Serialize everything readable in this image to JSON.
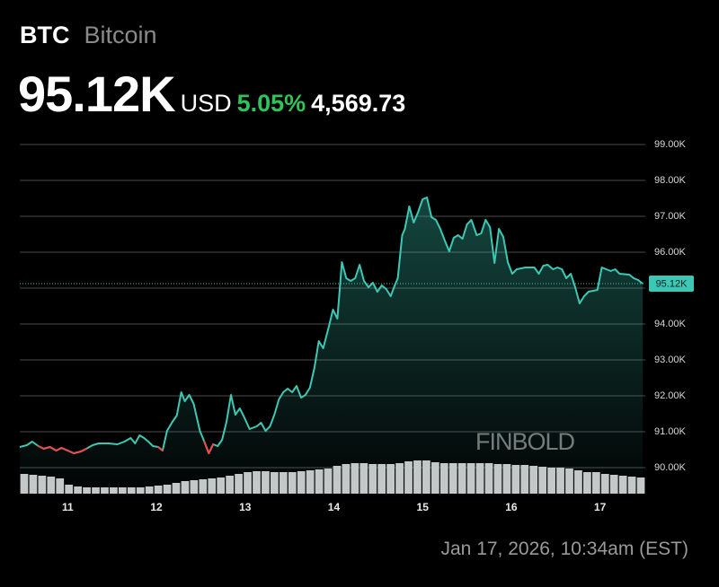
{
  "header": {
    "symbol": "BTC",
    "name": "Bitcoin",
    "price": "95.12K",
    "currency": "USD",
    "change_pct": "5.05%",
    "change_abs": "4,569.73"
  },
  "footer": {
    "timestamp": "Jan 17, 2026, 10:34am (EST)"
  },
  "chart_data": {
    "type": "line",
    "xlim": [
      10.46,
      17.51
    ],
    "xticks": [
      11,
      12,
      13,
      14,
      15,
      16,
      17
    ],
    "ylim": [
      89275,
      99525
    ],
    "yticks": [
      {
        "value": 90000,
        "label": "90.00K"
      },
      {
        "value": 91000,
        "label": "91.00K"
      },
      {
        "value": 92000,
        "label": "92.00K"
      },
      {
        "value": 93000,
        "label": "93.00K"
      },
      {
        "value": 94000,
        "label": "94.00K"
      },
      {
        "value": 95000,
        "label": "95.00K"
      },
      {
        "value": 96000,
        "label": "96.00K"
      },
      {
        "value": 97000,
        "label": "97.00K"
      },
      {
        "value": 98000,
        "label": "98.00K"
      },
      {
        "value": 99000,
        "label": "99.00K"
      }
    ],
    "grid": true,
    "last_label": "95.12K",
    "watermark": "FINBOLD",
    "series": [
      {
        "name": "BTC",
        "color": "#3cc8b4",
        "down_color": "#f04a4a",
        "x": [
          10.46,
          10.54,
          10.6,
          10.67,
          10.73,
          10.8,
          10.87,
          10.93,
          11.0,
          11.07,
          11.15,
          11.21,
          11.28,
          11.35,
          11.46,
          11.56,
          11.64,
          11.71,
          11.76,
          11.81,
          11.86,
          11.91,
          11.96,
          12.02,
          12.07,
          12.12,
          12.18,
          12.23,
          12.28,
          12.32,
          12.37,
          12.42,
          12.49,
          12.54,
          12.59,
          12.64,
          12.69,
          12.74,
          12.79,
          12.84,
          12.89,
          12.94,
          12.99,
          13.05,
          13.13,
          13.18,
          13.23,
          13.28,
          13.33,
          13.38,
          13.43,
          13.48,
          13.53,
          13.58,
          13.63,
          13.68,
          13.73,
          13.78,
          13.83,
          13.88,
          13.94,
          13.99,
          14.04,
          14.09,
          14.14,
          14.19,
          14.24,
          14.29,
          14.34,
          14.39,
          14.44,
          14.49,
          14.54,
          14.59,
          14.64,
          14.69,
          14.72,
          14.77,
          14.8,
          14.85,
          14.9,
          14.95,
          15.0,
          15.05,
          15.1,
          15.15,
          15.2,
          15.25,
          15.3,
          15.35,
          15.4,
          15.45,
          15.5,
          15.55,
          15.61,
          15.66,
          15.71,
          15.76,
          15.81,
          15.86,
          15.91,
          15.96,
          16.01,
          16.06,
          16.16,
          16.26,
          16.31,
          16.36,
          16.41,
          16.47,
          16.52,
          16.57,
          16.62,
          16.67,
          16.72,
          16.77,
          16.82,
          16.87,
          16.97,
          17.02,
          17.07,
          17.12,
          17.17,
          17.22,
          17.33,
          17.38,
          17.43,
          17.48
        ],
        "values": [
          90575,
          90625,
          90725,
          90600,
          90525,
          90575,
          90475,
          90550,
          90475,
          90400,
          90450,
          90525,
          90625,
          90675,
          90675,
          90650,
          90725,
          90825,
          90675,
          90900,
          90825,
          90725,
          90600,
          90575,
          90475,
          91025,
          91275,
          91450,
          92100,
          91850,
          92025,
          91775,
          91025,
          90725,
          90400,
          90650,
          90600,
          90775,
          91275,
          92025,
          91475,
          91650,
          91400,
          91075,
          91150,
          91250,
          91025,
          91150,
          91475,
          91900,
          92100,
          92200,
          92100,
          92275,
          91950,
          92025,
          92225,
          92775,
          93525,
          93325,
          93900,
          94400,
          94150,
          95725,
          95275,
          95200,
          95275,
          95650,
          95200,
          95025,
          95150,
          94900,
          95075,
          94975,
          94775,
          95100,
          95275,
          96475,
          96650,
          97275,
          96825,
          97125,
          97475,
          97525,
          96975,
          96900,
          96650,
          96325,
          96025,
          96400,
          96475,
          96375,
          96775,
          96900,
          96475,
          96525,
          96900,
          96700,
          95700,
          96650,
          96425,
          95725,
          95400,
          95525,
          95575,
          95575,
          95400,
          95625,
          95650,
          95525,
          95575,
          95525,
          95275,
          95400,
          95025,
          94575,
          94775,
          94900,
          94950,
          95575,
          95525,
          95475,
          95525,
          95400,
          95375,
          95275,
          95225,
          95125
        ]
      }
    ],
    "volume": {
      "color": "#c8c8c8",
      "ylim": [
        0,
        40
      ],
      "values": [
        22,
        21,
        20,
        19,
        17,
        10,
        8,
        7,
        7,
        7,
        7,
        7,
        7,
        7,
        8,
        9,
        10,
        12,
        14,
        15,
        16,
        17,
        18,
        20,
        22,
        24,
        25,
        25,
        24,
        24,
        24,
        25,
        26,
        27,
        28,
        31,
        33,
        34,
        34,
        33,
        33,
        33,
        34,
        36,
        37,
        37,
        35,
        34,
        34,
        34,
        34,
        34,
        34,
        33,
        33,
        32,
        32,
        31,
        30,
        29,
        29,
        28,
        26,
        24,
        24,
        22,
        21,
        20,
        19,
        18
      ]
    }
  }
}
